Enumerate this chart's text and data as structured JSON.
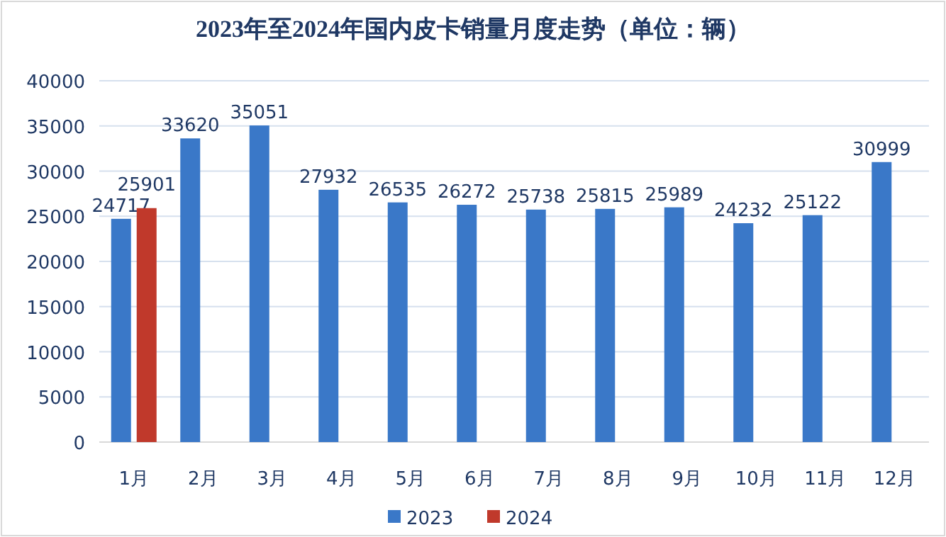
{
  "chart_data": {
    "type": "bar",
    "title": "2023年至2024年国内皮卡销量月度走势（单位：辆）",
    "categories": [
      "1月",
      "2月",
      "3月",
      "4月",
      "5月",
      "6月",
      "7月",
      "8月",
      "9月",
      "10月",
      "11月",
      "12月"
    ],
    "series": [
      {
        "name": "2023",
        "color": "#3a78c8",
        "values": [
          24717,
          33620,
          35051,
          27932,
          26535,
          26272,
          25738,
          25815,
          25989,
          24232,
          25122,
          30999
        ]
      },
      {
        "name": "2024",
        "color": "#c0392b",
        "values": [
          25901,
          null,
          null,
          null,
          null,
          null,
          null,
          null,
          null,
          null,
          null,
          null
        ]
      }
    ],
    "ylim": [
      0,
      40000
    ],
    "yticks": [
      0,
      5000,
      10000,
      15000,
      20000,
      25000,
      30000,
      35000,
      40000
    ],
    "grid": "y",
    "legend": "bottom",
    "data_labels": true
  }
}
